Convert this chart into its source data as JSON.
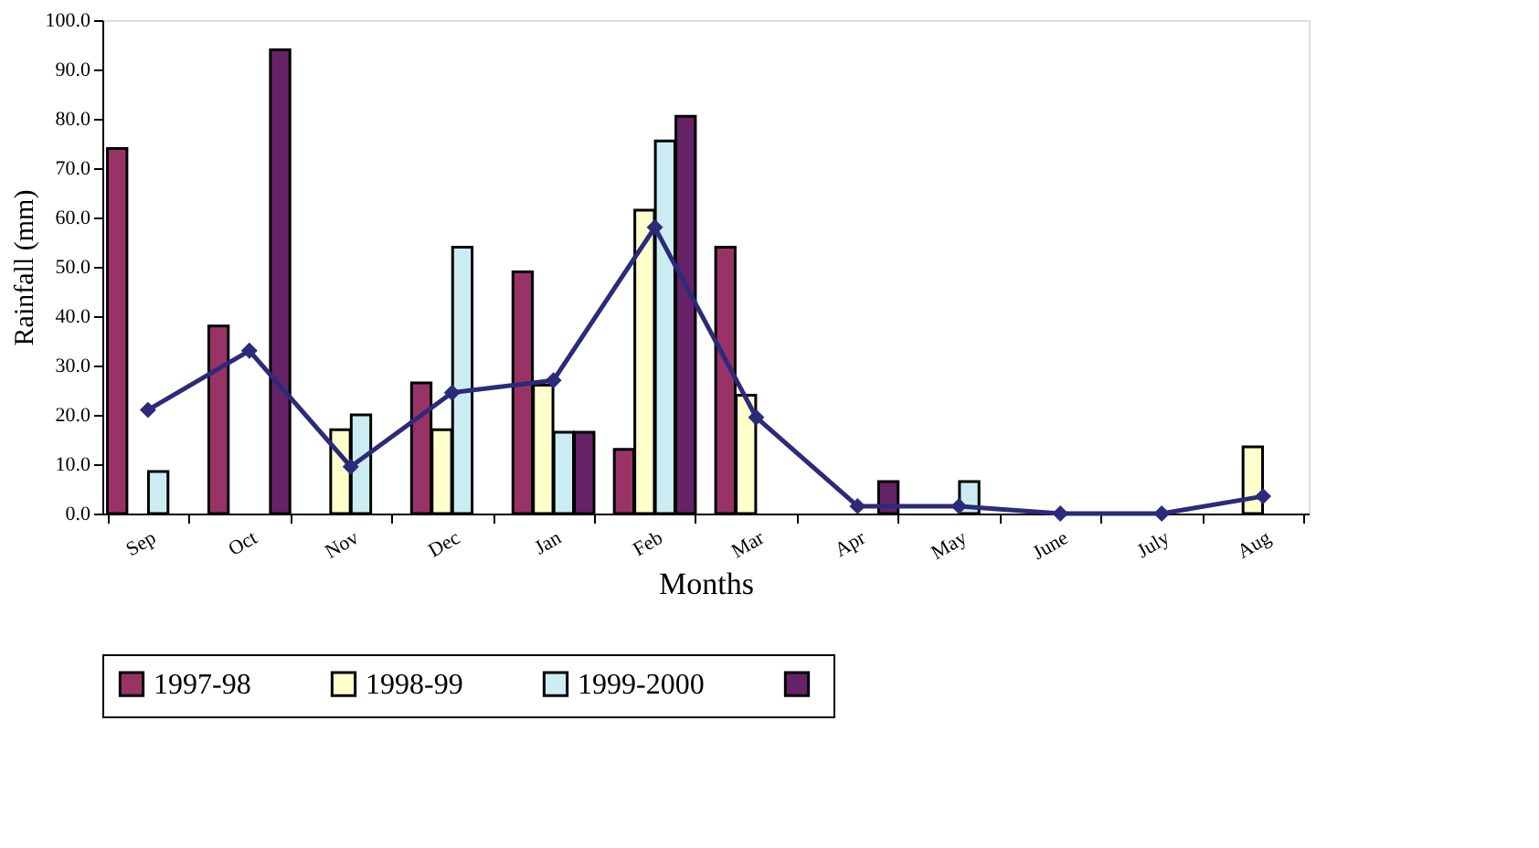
{
  "chart_data": {
    "type": "bar",
    "xlabel": "Months",
    "ylabel": "Rainfall (mm)",
    "categories": [
      "Sep",
      "Oct",
      "Nov",
      "Dec",
      "Jan",
      "Feb",
      "Mar",
      "Apr",
      "May",
      "June",
      "July",
      "Aug"
    ],
    "series": [
      {
        "name": "1997-98",
        "color": "#993366",
        "values": [
          74,
          38,
          null,
          26.5,
          49,
          13,
          54,
          null,
          null,
          null,
          null,
          null
        ]
      },
      {
        "name": "1998-99",
        "color": "#ffffcc",
        "values": [
          null,
          null,
          17,
          17,
          26,
          61.5,
          24,
          null,
          null,
          null,
          null,
          13.5
        ]
      },
      {
        "name": "1999-2000",
        "color": "#ccecf4",
        "values": [
          8.5,
          null,
          20,
          54,
          16.5,
          75.5,
          null,
          null,
          6.5,
          null,
          null,
          null
        ]
      },
      {
        "color": "#662266",
        "values": [
          null,
          94,
          null,
          null,
          16.5,
          80.5,
          null,
          6.5,
          null,
          null,
          null,
          null
        ]
      },
      {
        "type": "line",
        "color": "#2b2b7a",
        "marker": "diamond",
        "values": [
          21,
          33,
          9.5,
          24.5,
          27,
          58,
          19.5,
          1.5,
          1.5,
          0,
          0,
          3.5
        ]
      }
    ],
    "ylim": [
      0,
      100
    ],
    "yticks": [
      {
        "value": 0,
        "label": "0.0"
      },
      {
        "value": 10,
        "label": "10.0"
      },
      {
        "value": 20,
        "label": "20.0"
      },
      {
        "value": 30,
        "label": "30.0"
      },
      {
        "value": 40,
        "label": "40.0"
      },
      {
        "value": 50,
        "label": "50.0"
      },
      {
        "value": 60,
        "label": "60.0"
      },
      {
        "value": 70,
        "label": "70.0"
      },
      {
        "value": 80,
        "label": "80.0"
      },
      {
        "value": 90,
        "label": "90.0"
      },
      {
        "value": 100,
        "label": "100.0"
      }
    ],
    "grid": false,
    "legend": "bottom"
  }
}
